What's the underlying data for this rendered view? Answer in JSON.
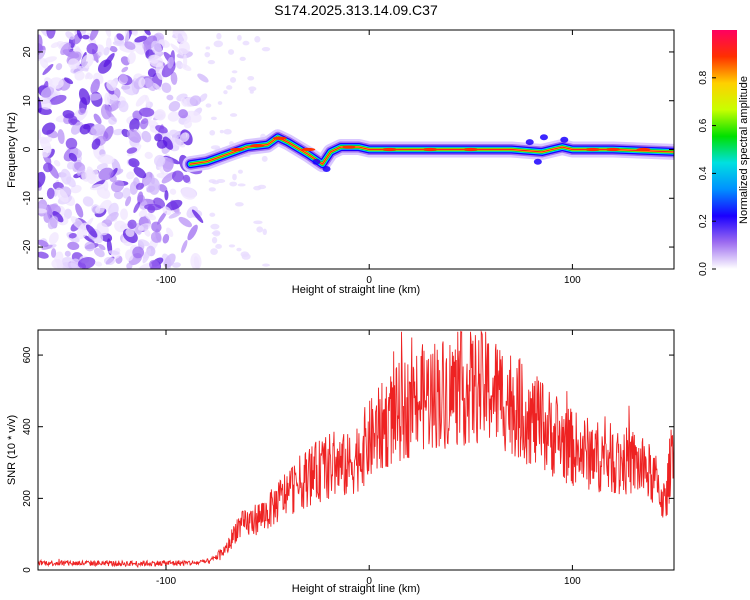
{
  "title": "S174.2025.313.14.09.C37",
  "colors": {
    "snr_line": "#ee2222",
    "axis": "#000000",
    "gradient_stops": [
      "#ffffff",
      "#9d6cf0",
      "#1a00ff",
      "#0090ff",
      "#00e0e0",
      "#00e000",
      "#c8ff00",
      "#ffd000",
      "#ff3000",
      "#ff0060"
    ]
  },
  "chart_data": [
    {
      "type": "heatmap",
      "name": "spectrogram",
      "xlabel": "Height of straight line (km)",
      "ylabel": "Frequency (Hz)",
      "xlim": [
        -163,
        150
      ],
      "ylim": [
        -24.5,
        24.5
      ],
      "xticks": [
        -100,
        0,
        100
      ],
      "yticks": [
        -20,
        -10,
        0,
        10,
        20
      ],
      "noise_region_x": [
        -163,
        -80
      ],
      "signal_track": [
        {
          "x": -88,
          "y": -3.0
        },
        {
          "x": -80,
          "y": -2.5
        },
        {
          "x": -70,
          "y": -1.0
        },
        {
          "x": -60,
          "y": 0.5
        },
        {
          "x": -50,
          "y": 1.0
        },
        {
          "x": -45,
          "y": 2.5
        },
        {
          "x": -40,
          "y": 1.5
        },
        {
          "x": -30,
          "y": -1.0
        },
        {
          "x": -23,
          "y": -3.0
        },
        {
          "x": -19,
          "y": -0.5
        },
        {
          "x": -14,
          "y": 0.5
        },
        {
          "x": -5,
          "y": 0.5
        },
        {
          "x": 0,
          "y": 0.0
        },
        {
          "x": 40,
          "y": 0.0
        },
        {
          "x": 70,
          "y": 0.0
        },
        {
          "x": 85,
          "y": -0.5
        },
        {
          "x": 95,
          "y": 0.5
        },
        {
          "x": 100,
          "y": 0.0
        },
        {
          "x": 120,
          "y": 0.0
        },
        {
          "x": 150,
          "y": -0.5
        }
      ],
      "colorbar": {
        "label": "Normalized spectral amplitude",
        "range": [
          0,
          1
        ],
        "ticks": [
          0.0,
          0.2,
          0.4,
          0.6,
          0.8
        ],
        "tick_labels": [
          "0.0",
          "0.2",
          "0.4",
          "0.6",
          "0.8"
        ]
      }
    },
    {
      "type": "line",
      "name": "snr",
      "xlabel": "Height of straight line (km)",
      "ylabel": "SNR (10 * v/v)",
      "xlim": [
        -163,
        150
      ],
      "ylim": [
        0,
        670
      ],
      "xticks": [
        -100,
        0,
        100
      ],
      "yticks": [
        0,
        200,
        400,
        600
      ],
      "series": [
        {
          "name": "SNR",
          "envelope": [
            {
              "x": -163,
              "y": 20
            },
            {
              "x": -120,
              "y": 18
            },
            {
              "x": -85,
              "y": 20
            },
            {
              "x": -78,
              "y": 25
            },
            {
              "x": -70,
              "y": 60
            },
            {
              "x": -65,
              "y": 120
            },
            {
              "x": -60,
              "y": 130
            },
            {
              "x": -50,
              "y": 160
            },
            {
              "x": -40,
              "y": 220
            },
            {
              "x": -30,
              "y": 260
            },
            {
              "x": -20,
              "y": 290
            },
            {
              "x": -10,
              "y": 290
            },
            {
              "x": 0,
              "y": 360
            },
            {
              "x": 10,
              "y": 420
            },
            {
              "x": 20,
              "y": 460
            },
            {
              "x": 30,
              "y": 490
            },
            {
              "x": 40,
              "y": 500
            },
            {
              "x": 50,
              "y": 510
            },
            {
              "x": 60,
              "y": 505
            },
            {
              "x": 70,
              "y": 470
            },
            {
              "x": 80,
              "y": 420
            },
            {
              "x": 90,
              "y": 380
            },
            {
              "x": 100,
              "y": 340
            },
            {
              "x": 110,
              "y": 320
            },
            {
              "x": 120,
              "y": 310
            },
            {
              "x": 130,
              "y": 300
            },
            {
              "x": 140,
              "y": 260
            },
            {
              "x": 146,
              "y": 180
            },
            {
              "x": 150,
              "y": 400
            }
          ]
        }
      ]
    }
  ]
}
